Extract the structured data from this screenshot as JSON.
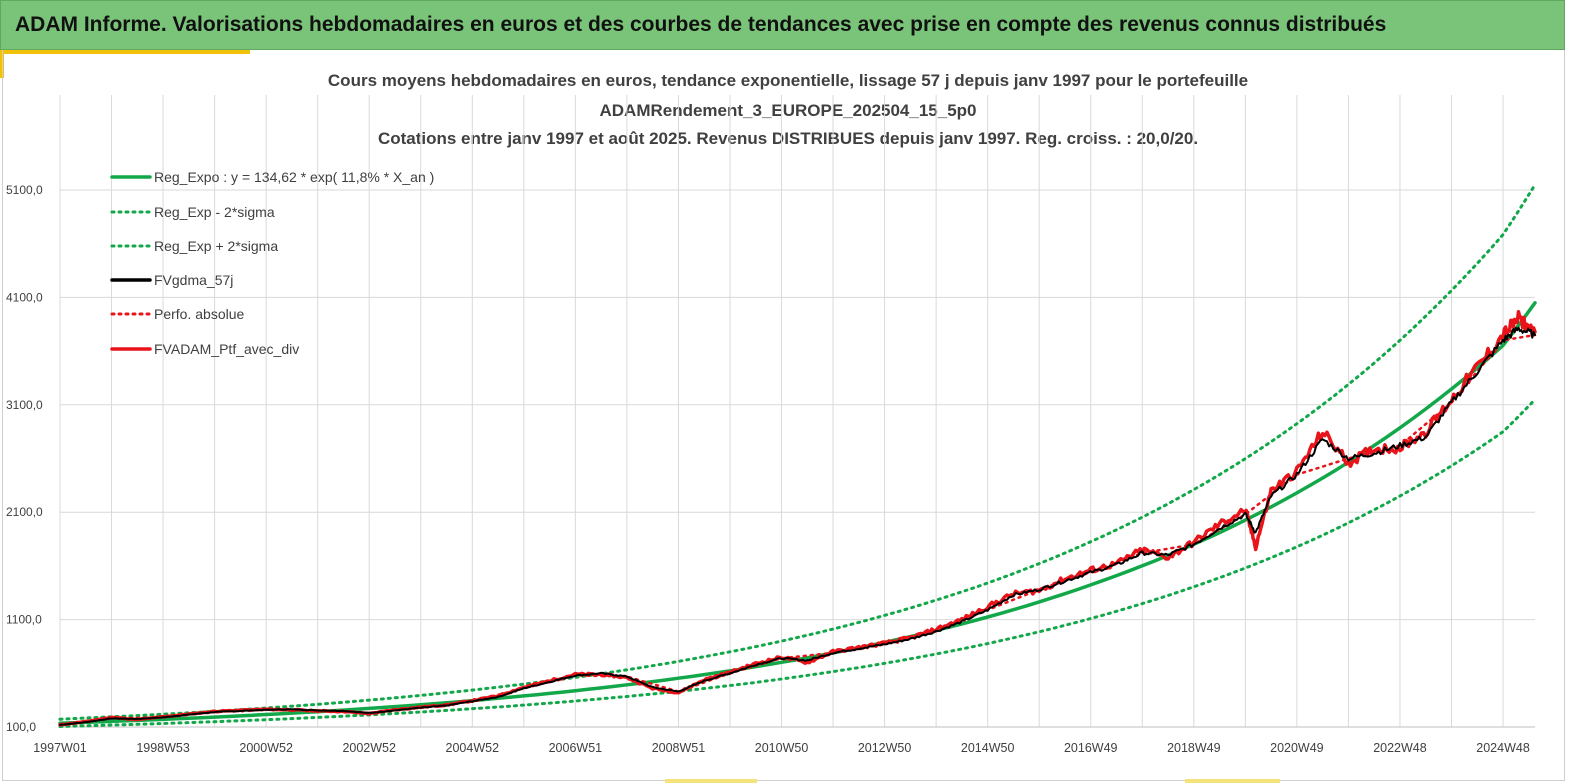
{
  "header": {
    "title": "ADAM Informe. Valorisations hebdomadaires en euros et des courbes de tendances avec prise en compte des revenus connus distribués"
  },
  "chart_data": {
    "type": "line",
    "title_lines": [
      "Cours moyens hebdomadaires  en euros, tendance exponentielle, lissage 57 j depuis janv 1997 pour le portefeuille",
      "ADAMRendement_3_EUROPE_202504_15_5p0",
      "Cotations  entre janv 1997 et août 2025. Revenus DISTRIBUES depuis janv 1997. Reg. croiss. : 20,0/20."
    ],
    "xlabel": "",
    "ylabel": "",
    "ylim": [
      100,
      5700
    ],
    "x_range_years": [
      1997.0,
      2025.62
    ],
    "y_ticks": [
      "100,0",
      "1100,0",
      "2100,0",
      "3100,0",
      "4100,0",
      "5100,0"
    ],
    "y_tick_values": [
      100,
      1100,
      2100,
      3100,
      4100,
      5100
    ],
    "x_ticks": [
      "1997W01",
      "1998W53",
      "2000W52",
      "2002W52",
      "2004W52",
      "2006W51",
      "2008W51",
      "2010W50",
      "2012W50",
      "2014W50",
      "2016W49",
      "2018W49",
      "2020W49",
      "2022W48",
      "2024W48"
    ],
    "x_tick_years": [
      1997.0,
      1999.0,
      2001.0,
      2003.0,
      2005.0,
      2007.0,
      2009.0,
      2011.0,
      2013.0,
      2015.0,
      2017.0,
      2019.0,
      2021.0,
      2023.0,
      2025.0
    ],
    "grid": true,
    "legend_position": "top-left",
    "colors": {
      "trend": "#12a84a",
      "smooth": "#000000",
      "perf": "#e8141a",
      "portfolio": "#e8141a",
      "grid": "#d9d9d9"
    },
    "series": [
      {
        "name": "Reg_Expo : y = 134,62 * exp( 11,8% *  X_an )",
        "style": "solid",
        "color": "#12a84a",
        "x": [
          1997.0,
          1999.0,
          2001.0,
          2003.0,
          2005.0,
          2007.0,
          2009.0,
          2011.0,
          2013.0,
          2015.0,
          2017.0,
          2019.0,
          2021.0,
          2023.0,
          2025.0,
          2025.62
        ],
        "values": [
          135,
          171,
          216,
          273,
          346,
          438,
          554,
          702,
          888,
          1124,
          1423,
          1801,
          2280,
          2886,
          3653,
          4050
        ]
      },
      {
        "name": "Reg_Exp - 2*sigma",
        "style": "dotted",
        "color": "#12a84a",
        "x": [
          1997.0,
          1999.0,
          2001.0,
          2003.0,
          2005.0,
          2007.0,
          2009.0,
          2011.0,
          2013.0,
          2015.0,
          2017.0,
          2019.0,
          2021.0,
          2023.0,
          2025.0,
          2025.62
        ],
        "values": [
          105,
          133,
          168,
          213,
          270,
          342,
          432,
          547,
          693,
          877,
          1110,
          1405,
          1778,
          2251,
          2849,
          3150
        ]
      },
      {
        "name": "Reg_Exp + 2*sigma",
        "style": "dotted",
        "color": "#12a84a",
        "x": [
          1997.0,
          1999.0,
          2001.0,
          2003.0,
          2005.0,
          2007.0,
          2009.0,
          2011.0,
          2013.0,
          2015.0,
          2017.0,
          2019.0,
          2021.0,
          2023.0,
          2025.0,
          2025.62
        ],
        "values": [
          173,
          219,
          277,
          350,
          444,
          562,
          711,
          900,
          1139,
          1441,
          1825,
          2310,
          2924,
          3701,
          4685,
          5150
        ]
      },
      {
        "name": "FVgdma_57j",
        "style": "solid",
        "color": "#000000",
        "x": [
          1997.0,
          1997.5,
          1998.0,
          1998.5,
          1999.0,
          1999.5,
          2000.0,
          2000.5,
          2001.0,
          2001.5,
          2002.0,
          2002.5,
          2003.0,
          2003.5,
          2004.0,
          2004.5,
          2005.0,
          2005.5,
          2006.0,
          2006.5,
          2007.0,
          2007.5,
          2008.0,
          2008.5,
          2009.0,
          2009.5,
          2010.0,
          2010.5,
          2011.0,
          2011.5,
          2012.0,
          2012.5,
          2013.0,
          2013.5,
          2014.0,
          2014.5,
          2015.0,
          2015.5,
          2016.0,
          2016.5,
          2017.0,
          2017.5,
          2018.0,
          2018.5,
          2019.0,
          2019.5,
          2020.0,
          2020.2,
          2020.5,
          2021.0,
          2021.5,
          2022.0,
          2022.5,
          2023.0,
          2023.5,
          2024.0,
          2024.5,
          2025.0,
          2025.3,
          2025.62
        ],
        "values": [
          120,
          145,
          180,
          175,
          190,
          215,
          240,
          250,
          260,
          265,
          255,
          250,
          230,
          255,
          280,
          300,
          340,
          380,
          460,
          520,
          580,
          600,
          570,
          470,
          430,
          530,
          600,
          680,
          740,
          720,
          790,
          830,
          870,
          920,
          990,
          1080,
          1190,
          1330,
          1380,
          1460,
          1540,
          1610,
          1720,
          1700,
          1800,
          1950,
          2080,
          1910,
          2250,
          2450,
          2780,
          2600,
          2650,
          2720,
          2800,
          3120,
          3410,
          3700,
          3810,
          3750
        ]
      },
      {
        "name": "Perfo. absolue",
        "style": "dotted",
        "color": "#e8141a",
        "x": [
          1997.0,
          1998.0,
          1999.0,
          2000.0,
          2001.0,
          2002.0,
          2003.0,
          2004.0,
          2005.0,
          2006.0,
          2007.0,
          2008.0,
          2009.0,
          2010.0,
          2011.0,
          2012.0,
          2013.0,
          2014.0,
          2015.0,
          2016.0,
          2017.0,
          2018.0,
          2019.0,
          2020.0,
          2021.0,
          2022.0,
          2023.0,
          2024.0,
          2025.0,
          2025.62
        ],
        "values": [
          120,
          180,
          190,
          240,
          260,
          255,
          230,
          280,
          340,
          460,
          580,
          570,
          430,
          600,
          740,
          790,
          870,
          990,
          1190,
          1380,
          1540,
          1720,
          1800,
          2080,
          2450,
          2600,
          2720,
          3120,
          3700,
          3750
        ]
      },
      {
        "name": "FVADAM_Ptf_avec_div",
        "style": "solid",
        "color": "#e8141a",
        "x": [
          1997.0,
          1997.5,
          1998.0,
          1998.5,
          1999.0,
          1999.5,
          2000.0,
          2000.5,
          2001.0,
          2001.5,
          2002.0,
          2002.5,
          2003.0,
          2003.5,
          2004.0,
          2004.5,
          2005.0,
          2005.5,
          2006.0,
          2006.5,
          2007.0,
          2007.5,
          2008.0,
          2008.5,
          2009.0,
          2009.5,
          2010.0,
          2010.5,
          2011.0,
          2011.5,
          2012.0,
          2012.5,
          2013.0,
          2013.5,
          2014.0,
          2014.5,
          2015.0,
          2015.5,
          2016.0,
          2016.5,
          2017.0,
          2017.5,
          2018.0,
          2018.5,
          2019.0,
          2019.5,
          2020.0,
          2020.2,
          2020.5,
          2021.0,
          2021.5,
          2022.0,
          2022.5,
          2023.0,
          2023.5,
          2024.0,
          2024.5,
          2025.0,
          2025.3,
          2025.62
        ],
        "values": [
          120,
          150,
          190,
          170,
          195,
          220,
          245,
          255,
          265,
          260,
          250,
          245,
          225,
          260,
          285,
          305,
          345,
          390,
          470,
          530,
          590,
          590,
          560,
          460,
          420,
          540,
          610,
          690,
          750,
          700,
          800,
          840,
          880,
          930,
          1010,
          1100,
          1220,
          1340,
          1370,
          1480,
          1560,
          1620,
          1750,
          1680,
          1820,
          1990,
          2120,
          1780,
          2300,
          2480,
          2850,
          2560,
          2690,
          2700,
          2850,
          3150,
          3450,
          3750,
          3900,
          3780
        ]
      }
    ]
  }
}
